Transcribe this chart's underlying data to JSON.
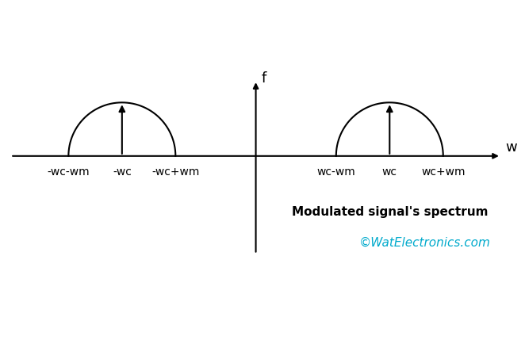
{
  "background_color": "#ffffff",
  "axis_color": "#000000",
  "semicircle_color": "#000000",
  "arrow_color": "#000000",
  "text_color": "#000000",
  "watermark_color": "#00AACC",
  "f_label": "f",
  "w_label": "w",
  "neg_labels": [
    "-wc-wm",
    "-wc",
    "-wc+wm"
  ],
  "pos_labels": [
    "wc-wm",
    "wc",
    "wc+wm"
  ],
  "spectrum_text": "Modulated signal's spectrum",
  "watermark_text": "©WatElectronics.com",
  "wc": 3.0,
  "wm": 1.2,
  "figsize": [
    6.62,
    4.35
  ],
  "dpi": 100
}
